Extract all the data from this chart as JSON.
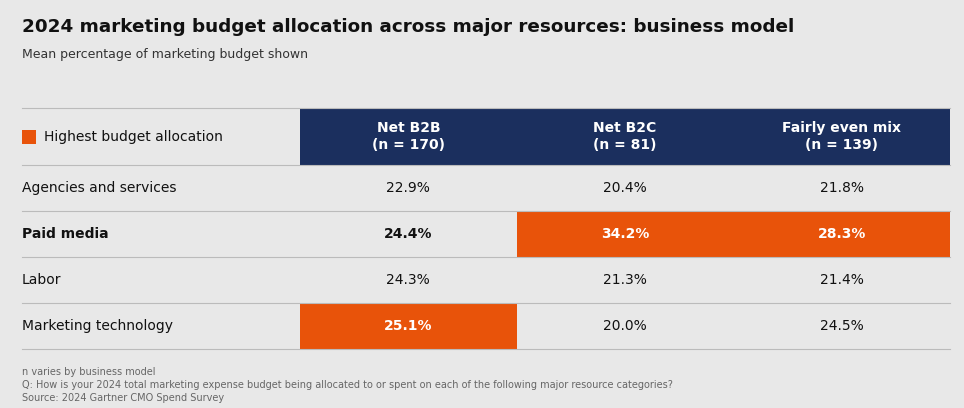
{
  "title": "2024 marketing budget allocation across major resources: business model",
  "subtitle": "Mean percentage of marketing budget shown",
  "legend_label": "Highest budget allocation",
  "columns": [
    "Net B2B\n(n = 170)",
    "Net B2C\n(n = 81)",
    "Fairly even mix\n(n = 139)"
  ],
  "rows": [
    {
      "label": "Agencies and services",
      "bold": false,
      "values": [
        "22.9%",
        "20.4%",
        "21.8%"
      ],
      "highlights": [
        false,
        false,
        false
      ]
    },
    {
      "label": "Paid media",
      "bold": true,
      "values": [
        "24.4%",
        "34.2%",
        "28.3%"
      ],
      "highlights": [
        false,
        true,
        true
      ]
    },
    {
      "label": "Labor",
      "bold": false,
      "values": [
        "24.3%",
        "21.3%",
        "21.4%"
      ],
      "highlights": [
        false,
        false,
        false
      ]
    },
    {
      "label": "Marketing technology",
      "bold": false,
      "values": [
        "25.1%",
        "20.0%",
        "24.5%"
      ],
      "highlights": [
        true,
        false,
        false
      ]
    }
  ],
  "footnotes": [
    "n varies by business model",
    "Q: How is your 2024 total marketing expense budget being allocated to or spent on each of the following major resource categories?",
    "Source: 2024 Gartner CMO Spend Survey"
  ],
  "header_bg": "#1b2f5e",
  "header_fg": "#ffffff",
  "highlight_bg": "#e8530a",
  "highlight_fg": "#ffffff",
  "row_bg": "#e8e8e8",
  "divider_color": "#bbbbbb",
  "bg_color": "#e8e8e8",
  "legend_square_color": "#e8530a",
  "title_color": "#111111",
  "subtitle_color": "#333333",
  "footnote_color": "#666666",
  "label_color": "#111111"
}
